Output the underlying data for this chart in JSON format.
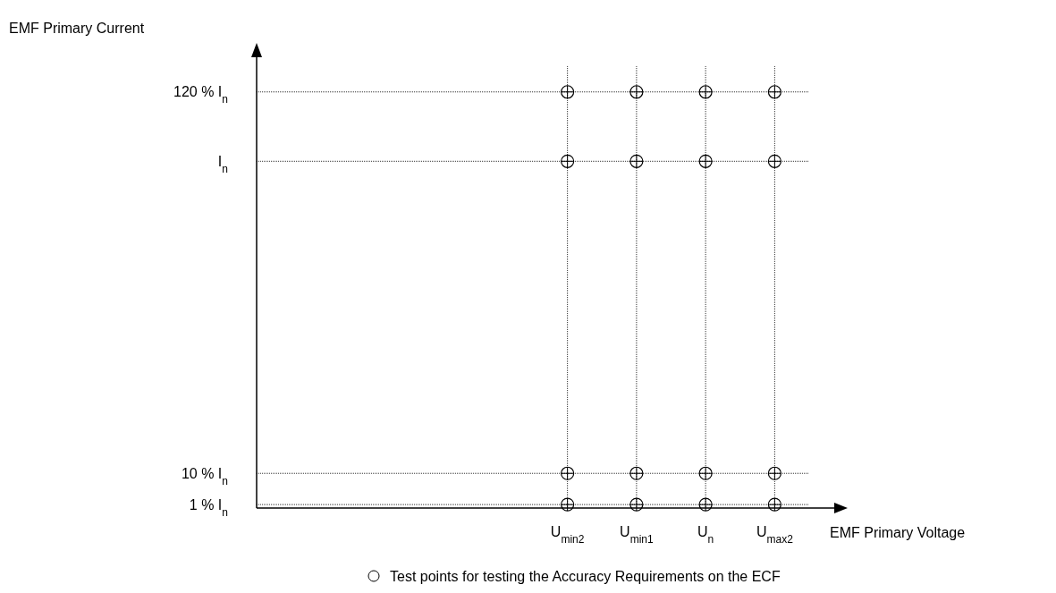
{
  "chart_data": {
    "type": "scatter",
    "xlabel": "EMF Primary Voltage",
    "ylabel": "EMF Primary Current",
    "categories": [
      null,
      null,
      null,
      null,
      "U$_{min2}$",
      "U$_{min1}$",
      "U$_{n}$",
      "U$_{max2}$"
    ],
    "ylim": [
      0,
      130
    ],
    "yticks": [
      {
        "value": 1,
        "label": "1 % I$_{n}$"
      },
      {
        "value": 10,
        "label": "10 % I$_{n}$"
      },
      {
        "value": 100,
        "label": "I$_{n}$"
      },
      {
        "value": 120,
        "label": "120 % I$_{n}$"
      }
    ],
    "grid": true,
    "marker": "circle",
    "legend": "bottom",
    "series": [
      {
        "name": "Test points for testing the Accuracy Requirements on the ECF",
        "color": "#000000",
        "values": [
          null,
          null,
          null,
          null,
          1,
          1,
          1,
          1
        ]
      },
      {
        "color": "#000000",
        "values": [
          null,
          null,
          null,
          null,
          10,
          10,
          10,
          10
        ]
      },
      {
        "color": "#000000",
        "values": [
          null,
          null,
          null,
          null,
          100,
          100,
          100,
          100
        ]
      },
      {
        "color": "#000000",
        "values": [
          null,
          null,
          null,
          null,
          120,
          120,
          120,
          120
        ]
      }
    ]
  }
}
